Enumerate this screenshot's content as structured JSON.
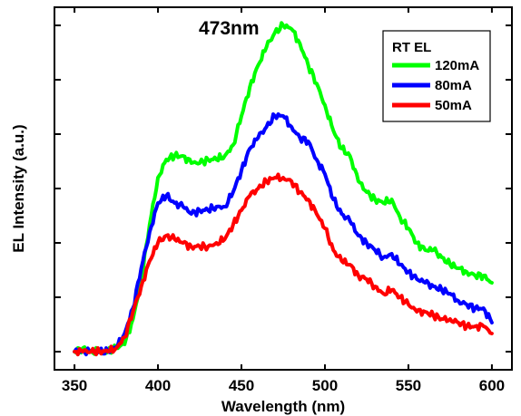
{
  "chart_data": {
    "type": "line",
    "title": "",
    "annotation": "473nm",
    "xlabel": "Wavelength (nm)",
    "ylabel": "EL Intensity (a.u.)",
    "xlim": [
      338,
      612
    ],
    "ylim": [
      0,
      1.0
    ],
    "xticks": [
      350,
      400,
      450,
      500,
      550,
      600
    ],
    "xtick_labels": [
      "350",
      "400",
      "450",
      "500",
      "550",
      "600"
    ],
    "yticks": [
      0.05,
      0.2,
      0.35,
      0.5,
      0.65,
      0.8,
      0.95
    ],
    "ytick_labels": [],
    "grid": false,
    "legend": {
      "title": "RT EL",
      "position": "top-right"
    },
    "series": [
      {
        "name": "120mA",
        "color": "#00ff00",
        "x": [
          350,
          355,
          360,
          365,
          370,
          375,
          380,
          385,
          390,
          395,
          400,
          405,
          410,
          415,
          420,
          425,
          430,
          435,
          440,
          445,
          450,
          455,
          460,
          465,
          470,
          475,
          480,
          485,
          490,
          495,
          500,
          505,
          510,
          515,
          520,
          525,
          530,
          535,
          540,
          545,
          550,
          555,
          560,
          565,
          570,
          575,
          580,
          585,
          590,
          595,
          600
        ],
        "y": [
          0.05,
          0.06,
          0.05,
          0.05,
          0.05,
          0.06,
          0.07,
          0.14,
          0.25,
          0.4,
          0.53,
          0.58,
          0.59,
          0.59,
          0.57,
          0.57,
          0.58,
          0.58,
          0.59,
          0.62,
          0.7,
          0.78,
          0.84,
          0.89,
          0.93,
          0.95,
          0.94,
          0.9,
          0.84,
          0.79,
          0.73,
          0.66,
          0.61,
          0.59,
          0.52,
          0.49,
          0.47,
          0.46,
          0.47,
          0.42,
          0.39,
          0.35,
          0.33,
          0.33,
          0.31,
          0.29,
          0.28,
          0.27,
          0.26,
          0.26,
          0.24
        ]
      },
      {
        "name": "80mA",
        "color": "#0000ff",
        "x": [
          350,
          355,
          360,
          365,
          370,
          375,
          380,
          385,
          390,
          395,
          400,
          405,
          410,
          415,
          420,
          425,
          430,
          435,
          440,
          445,
          450,
          455,
          460,
          465,
          470,
          475,
          480,
          485,
          490,
          495,
          500,
          505,
          510,
          515,
          520,
          525,
          530,
          535,
          540,
          545,
          550,
          555,
          560,
          565,
          570,
          575,
          580,
          585,
          590,
          595,
          600
        ],
        "y": [
          0.05,
          0.05,
          0.05,
          0.05,
          0.05,
          0.06,
          0.1,
          0.17,
          0.28,
          0.38,
          0.46,
          0.48,
          0.46,
          0.45,
          0.43,
          0.44,
          0.44,
          0.45,
          0.45,
          0.49,
          0.55,
          0.61,
          0.64,
          0.67,
          0.7,
          0.7,
          0.67,
          0.64,
          0.63,
          0.58,
          0.54,
          0.47,
          0.43,
          0.41,
          0.37,
          0.35,
          0.33,
          0.31,
          0.32,
          0.29,
          0.27,
          0.25,
          0.24,
          0.23,
          0.22,
          0.21,
          0.19,
          0.18,
          0.17,
          0.17,
          0.13
        ]
      },
      {
        "name": "50mA",
        "color": "#ff0000",
        "x": [
          350,
          355,
          360,
          365,
          370,
          375,
          380,
          385,
          390,
          395,
          400,
          405,
          410,
          415,
          420,
          425,
          430,
          435,
          440,
          445,
          450,
          455,
          460,
          465,
          470,
          475,
          480,
          485,
          490,
          495,
          500,
          505,
          510,
          515,
          520,
          525,
          530,
          535,
          540,
          545,
          550,
          555,
          560,
          565,
          570,
          575,
          580,
          585,
          590,
          595,
          600
        ],
        "y": [
          0.05,
          0.05,
          0.05,
          0.05,
          0.05,
          0.06,
          0.09,
          0.16,
          0.23,
          0.3,
          0.35,
          0.37,
          0.36,
          0.35,
          0.34,
          0.34,
          0.34,
          0.35,
          0.36,
          0.4,
          0.44,
          0.48,
          0.5,
          0.52,
          0.53,
          0.53,
          0.52,
          0.49,
          0.47,
          0.43,
          0.39,
          0.33,
          0.3,
          0.29,
          0.26,
          0.25,
          0.23,
          0.21,
          0.22,
          0.2,
          0.18,
          0.16,
          0.16,
          0.15,
          0.14,
          0.14,
          0.13,
          0.12,
          0.12,
          0.12,
          0.1
        ]
      }
    ]
  }
}
